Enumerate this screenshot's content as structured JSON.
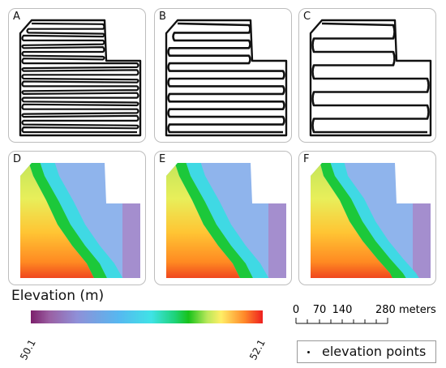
{
  "panels": [
    {
      "label": "A",
      "type": "track",
      "lines": 28
    },
    {
      "label": "B",
      "type": "track",
      "lines": 14
    },
    {
      "label": "C",
      "type": "track",
      "lines": 8
    },
    {
      "label": "D",
      "type": "elevation"
    },
    {
      "label": "E",
      "type": "elevation"
    },
    {
      "label": "F",
      "type": "elevation"
    }
  ],
  "legend": {
    "title": "Elevation (m)",
    "min_label": "50.1",
    "max_label": "52.1"
  },
  "scale_bar": {
    "labels": [
      "0",
      "70",
      "140",
      "280 meters"
    ]
  },
  "points_legend": {
    "label": "elevation points"
  }
}
